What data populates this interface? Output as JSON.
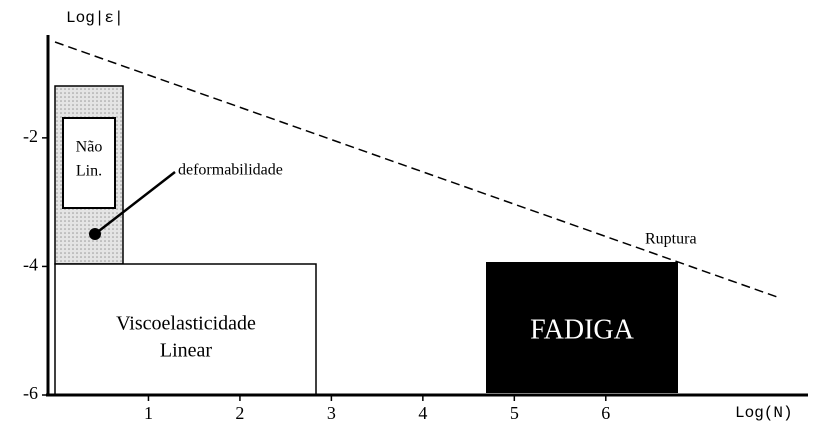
{
  "axes": {
    "y_label": "Log|ε|",
    "x_label": "Log(N)",
    "xticks": [
      1,
      2,
      3,
      4,
      5,
      6
    ],
    "yticks": [
      -2,
      -4,
      -6
    ],
    "xlim": [
      0,
      8.2
    ],
    "ylim": [
      -6,
      -0.4
    ]
  },
  "regions": {
    "nonlinear": [
      "Não",
      "Lin."
    ],
    "deformability": "deformabilidade",
    "linear": [
      "Viscoelasticidade",
      "Linear"
    ],
    "fatigue": "FADIGA",
    "rupture": "Ruptura"
  }
}
